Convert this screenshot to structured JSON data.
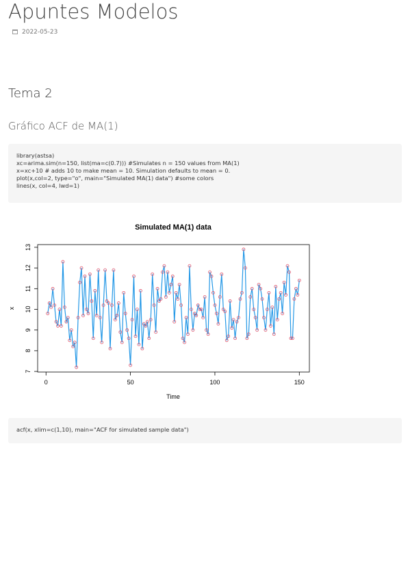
{
  "header": {
    "title": "Apuntes Modelos",
    "date": "2022-05-23"
  },
  "heading": "Tema 2",
  "subheading": "Gráfico ACF de MA(1)",
  "code_1": [
    "library(astsa)",
    "xc=arima.sim(n=150, list(ma=c(0.7))) #Simulates n = 150 values from MA(1)",
    "x=xc+10 # adds 10 to make mean = 10. Simulation defaults to mean = 0.",
    "plot(x,col=2, type=\"o\", main=\"Simulated MA(1) data\") #some colors",
    "lines(x, col=4, lwd=1)"
  ],
  "chart_data": {
    "type": "line",
    "title": "Simulated MA(1) data",
    "x_label": "Time",
    "y_label": "x",
    "color": "#2297e6",
    "marker_color": "#df536b",
    "x": [
      1,
      2,
      3,
      4,
      5,
      6,
      7,
      8,
      9,
      10,
      11,
      12,
      13,
      14,
      15,
      16,
      17,
      18,
      19,
      20,
      21,
      22,
      23,
      24,
      25,
      26,
      27,
      28,
      29,
      30,
      31,
      32,
      33,
      34,
      35,
      36,
      37,
      38,
      39,
      40,
      41,
      42,
      43,
      44,
      45,
      46,
      47,
      48,
      49,
      50,
      51,
      52,
      53,
      54,
      55,
      56,
      57,
      58,
      59,
      60,
      61,
      62,
      63,
      64,
      65,
      66,
      67,
      68,
      69,
      70,
      71,
      72,
      73,
      74,
      75,
      76,
      77,
      78,
      79,
      80,
      81,
      82,
      83,
      84,
      85,
      86,
      87,
      88,
      89,
      90,
      91,
      92,
      93,
      94,
      95,
      96,
      97,
      98,
      99,
      100,
      101,
      102,
      103,
      104,
      105,
      106,
      107,
      108,
      109,
      110,
      111,
      112,
      113,
      114,
      115,
      116,
      117,
      118,
      119,
      120,
      121,
      122,
      123,
      124,
      125,
      126,
      127,
      128,
      129,
      130,
      131,
      132,
      133,
      134,
      135,
      136,
      137,
      138,
      139,
      140,
      141,
      142,
      143,
      144,
      145,
      146,
      147,
      148,
      149,
      150
    ],
    "values": [
      9.8,
      10.3,
      10.1,
      11.0,
      10.2,
      9.4,
      9.2,
      10.0,
      9.2,
      12.3,
      10.1,
      9.4,
      9.6,
      8.5,
      9.0,
      8.2,
      8.4,
      7.2,
      9.6,
      11.3,
      12.0,
      9.7,
      11.6,
      10.0,
      9.8,
      11.7,
      10.4,
      8.6,
      10.9,
      9.7,
      11.9,
      9.6,
      8.4,
      10.2,
      11.9,
      10.4,
      10.3,
      8.1,
      10.2,
      11.9,
      9.5,
      9.7,
      10.3,
      8.9,
      8.4,
      10.8,
      9.8,
      9.0,
      8.6,
      7.3,
      9.5,
      11.6,
      8.7,
      10.0,
      8.3,
      10.9,
      8.1,
      9.3,
      9.2,
      9.4,
      8.6,
      9.5,
      11.7,
      10.2,
      8.9,
      11.0,
      10.4,
      10.5,
      11.8,
      12.1,
      10.6,
      11.8,
      10.8,
      11.2,
      11.6,
      9.4,
      10.8,
      10.5,
      11.2,
      10.2,
      8.6,
      8.4,
      9.6,
      8.8,
      12.1,
      10.0,
      9.0,
      9.8,
      9.7,
      10.2,
      10.0,
      10.0,
      9.6,
      10.6,
      9.0,
      8.8,
      11.8,
      11.6,
      10.8,
      10.2,
      9.8,
      9.3,
      10.6,
      11.7,
      10.0,
      9.9,
      8.5,
      8.7,
      10.4,
      9.1,
      9.5,
      8.6,
      9.4,
      9.6,
      10.5,
      10.8,
      12.9,
      12.0,
      8.6,
      8.8,
      10.6,
      11.0,
      10.0,
      9.6,
      9.0,
      11.2,
      11.0,
      10.5,
      9.6,
      9.0,
      10.0,
      10.8,
      9.2,
      10.1,
      8.8,
      11.1,
      9.5,
      10.5,
      10.8,
      9.8,
      11.3,
      10.7,
      12.1,
      11.8,
      8.6,
      8.6,
      10.5,
      11.0,
      10.7,
      11.4
    ],
    "xlim": [
      -4.96,
      155.96
    ],
    "ylim": [
      6.97,
      13.13
    ],
    "xticks": [
      0,
      50,
      100,
      150
    ],
    "yticks": [
      7,
      8,
      9,
      10,
      11,
      12,
      13
    ]
  },
  "code_2": [
    "acf(x, xlim=c(1,10), main=\"ACF for simulated sample data\")"
  ]
}
